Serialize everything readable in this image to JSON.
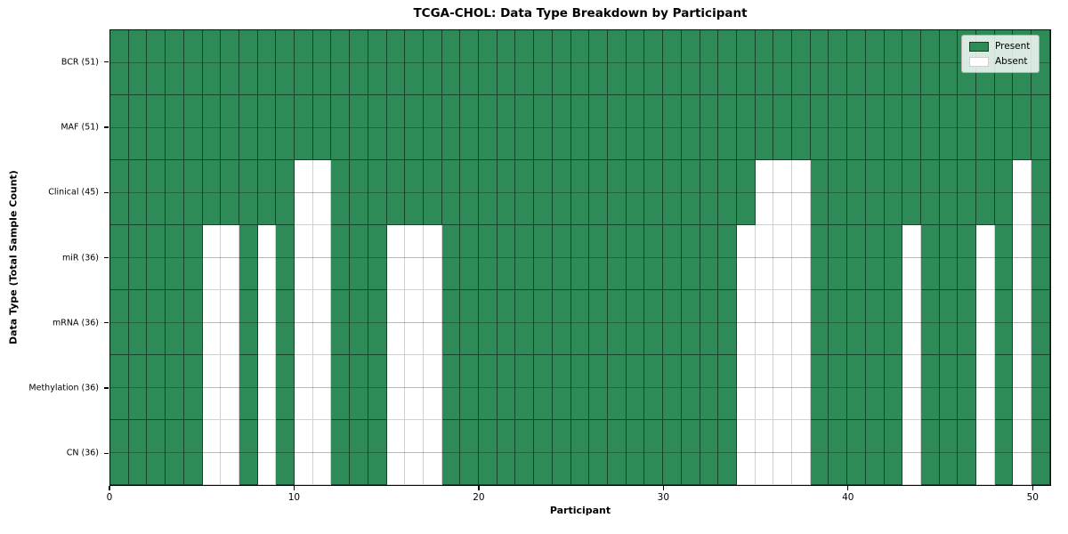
{
  "chart_data": {
    "type": "heatmap",
    "title": "TCGA-CHOL: Data Type Breakdown by Participant",
    "xlabel": "Participant",
    "ylabel": "Data Type (Total Sample Count)",
    "x_axis": {
      "min": 0,
      "max": 51,
      "ticks": [
        0,
        10,
        20,
        30,
        40,
        50
      ]
    },
    "participant_count": 51,
    "grid": true,
    "legend_position": "upper right",
    "colors": {
      "present": "#2e8b57",
      "absent": "#ffffff"
    },
    "legend": [
      {
        "label": "Present",
        "color": "#2e8b57"
      },
      {
        "label": "Absent",
        "color": "#ffffff"
      }
    ],
    "rows": [
      {
        "label": "BCR (51)",
        "datatype": "BCR",
        "total": 51,
        "absent_participants": []
      },
      {
        "label": "MAF (51)",
        "datatype": "MAF",
        "total": 51,
        "absent_participants": []
      },
      {
        "label": "Clinical (45)",
        "datatype": "Clinical",
        "total": 45,
        "absent_participants": [
          10,
          11,
          35,
          36,
          37,
          49
        ]
      },
      {
        "label": "miR (36)",
        "datatype": "miR",
        "total": 36,
        "absent_participants": [
          5,
          6,
          8,
          10,
          11,
          15,
          16,
          17,
          34,
          35,
          36,
          37,
          43,
          47,
          49
        ]
      },
      {
        "label": "mRNA (36)",
        "datatype": "mRNA",
        "total": 36,
        "absent_participants": [
          5,
          6,
          8,
          10,
          11,
          15,
          16,
          17,
          34,
          35,
          36,
          37,
          43,
          47,
          49
        ]
      },
      {
        "label": "Methylation (36)",
        "datatype": "Methylation",
        "total": 36,
        "absent_participants": [
          5,
          6,
          8,
          10,
          11,
          15,
          16,
          17,
          34,
          35,
          36,
          37,
          43,
          47,
          49
        ]
      },
      {
        "label": "CN (36)",
        "datatype": "CN",
        "total": 36,
        "absent_participants": [
          5,
          6,
          8,
          10,
          11,
          15,
          16,
          17,
          34,
          35,
          36,
          37,
          43,
          47,
          49
        ]
      }
    ]
  }
}
